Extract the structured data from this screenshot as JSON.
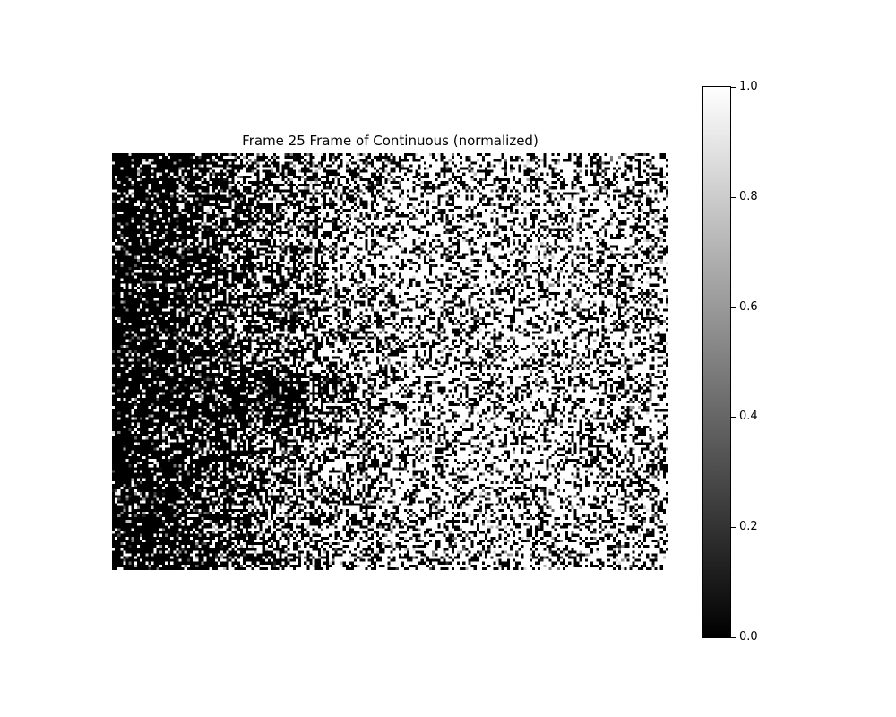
{
  "chart_data": {
    "type": "heatmap",
    "title": "Frame 25 Frame of Continuous (normalized)",
    "xlabel": "",
    "ylabel": "",
    "axes_visible": false,
    "grid_size": {
      "cols": 200,
      "rows": 150
    },
    "colormap": "gray",
    "colormap_colors": [
      "#000000",
      "#ffffff"
    ],
    "value_range": [
      0.0,
      1.0
    ],
    "colorbar": {
      "ticks": [
        0.0,
        0.2,
        0.4,
        0.6,
        0.8,
        1.0
      ],
      "tick_labels": [
        "0.0",
        "0.2",
        "0.4",
        "0.6",
        "0.8",
        "1.0"
      ]
    },
    "approx_brightness_profile": {
      "description_of_columns": [
        0.0,
        0.1,
        0.2,
        0.3,
        0.4,
        0.5,
        0.6,
        0.7,
        0.8,
        0.9,
        1.0
      ],
      "mean_value": [
        0.1,
        0.15,
        0.3,
        0.45,
        0.6,
        0.65,
        0.7,
        0.72,
        0.72,
        0.7,
        0.68
      ]
    }
  }
}
